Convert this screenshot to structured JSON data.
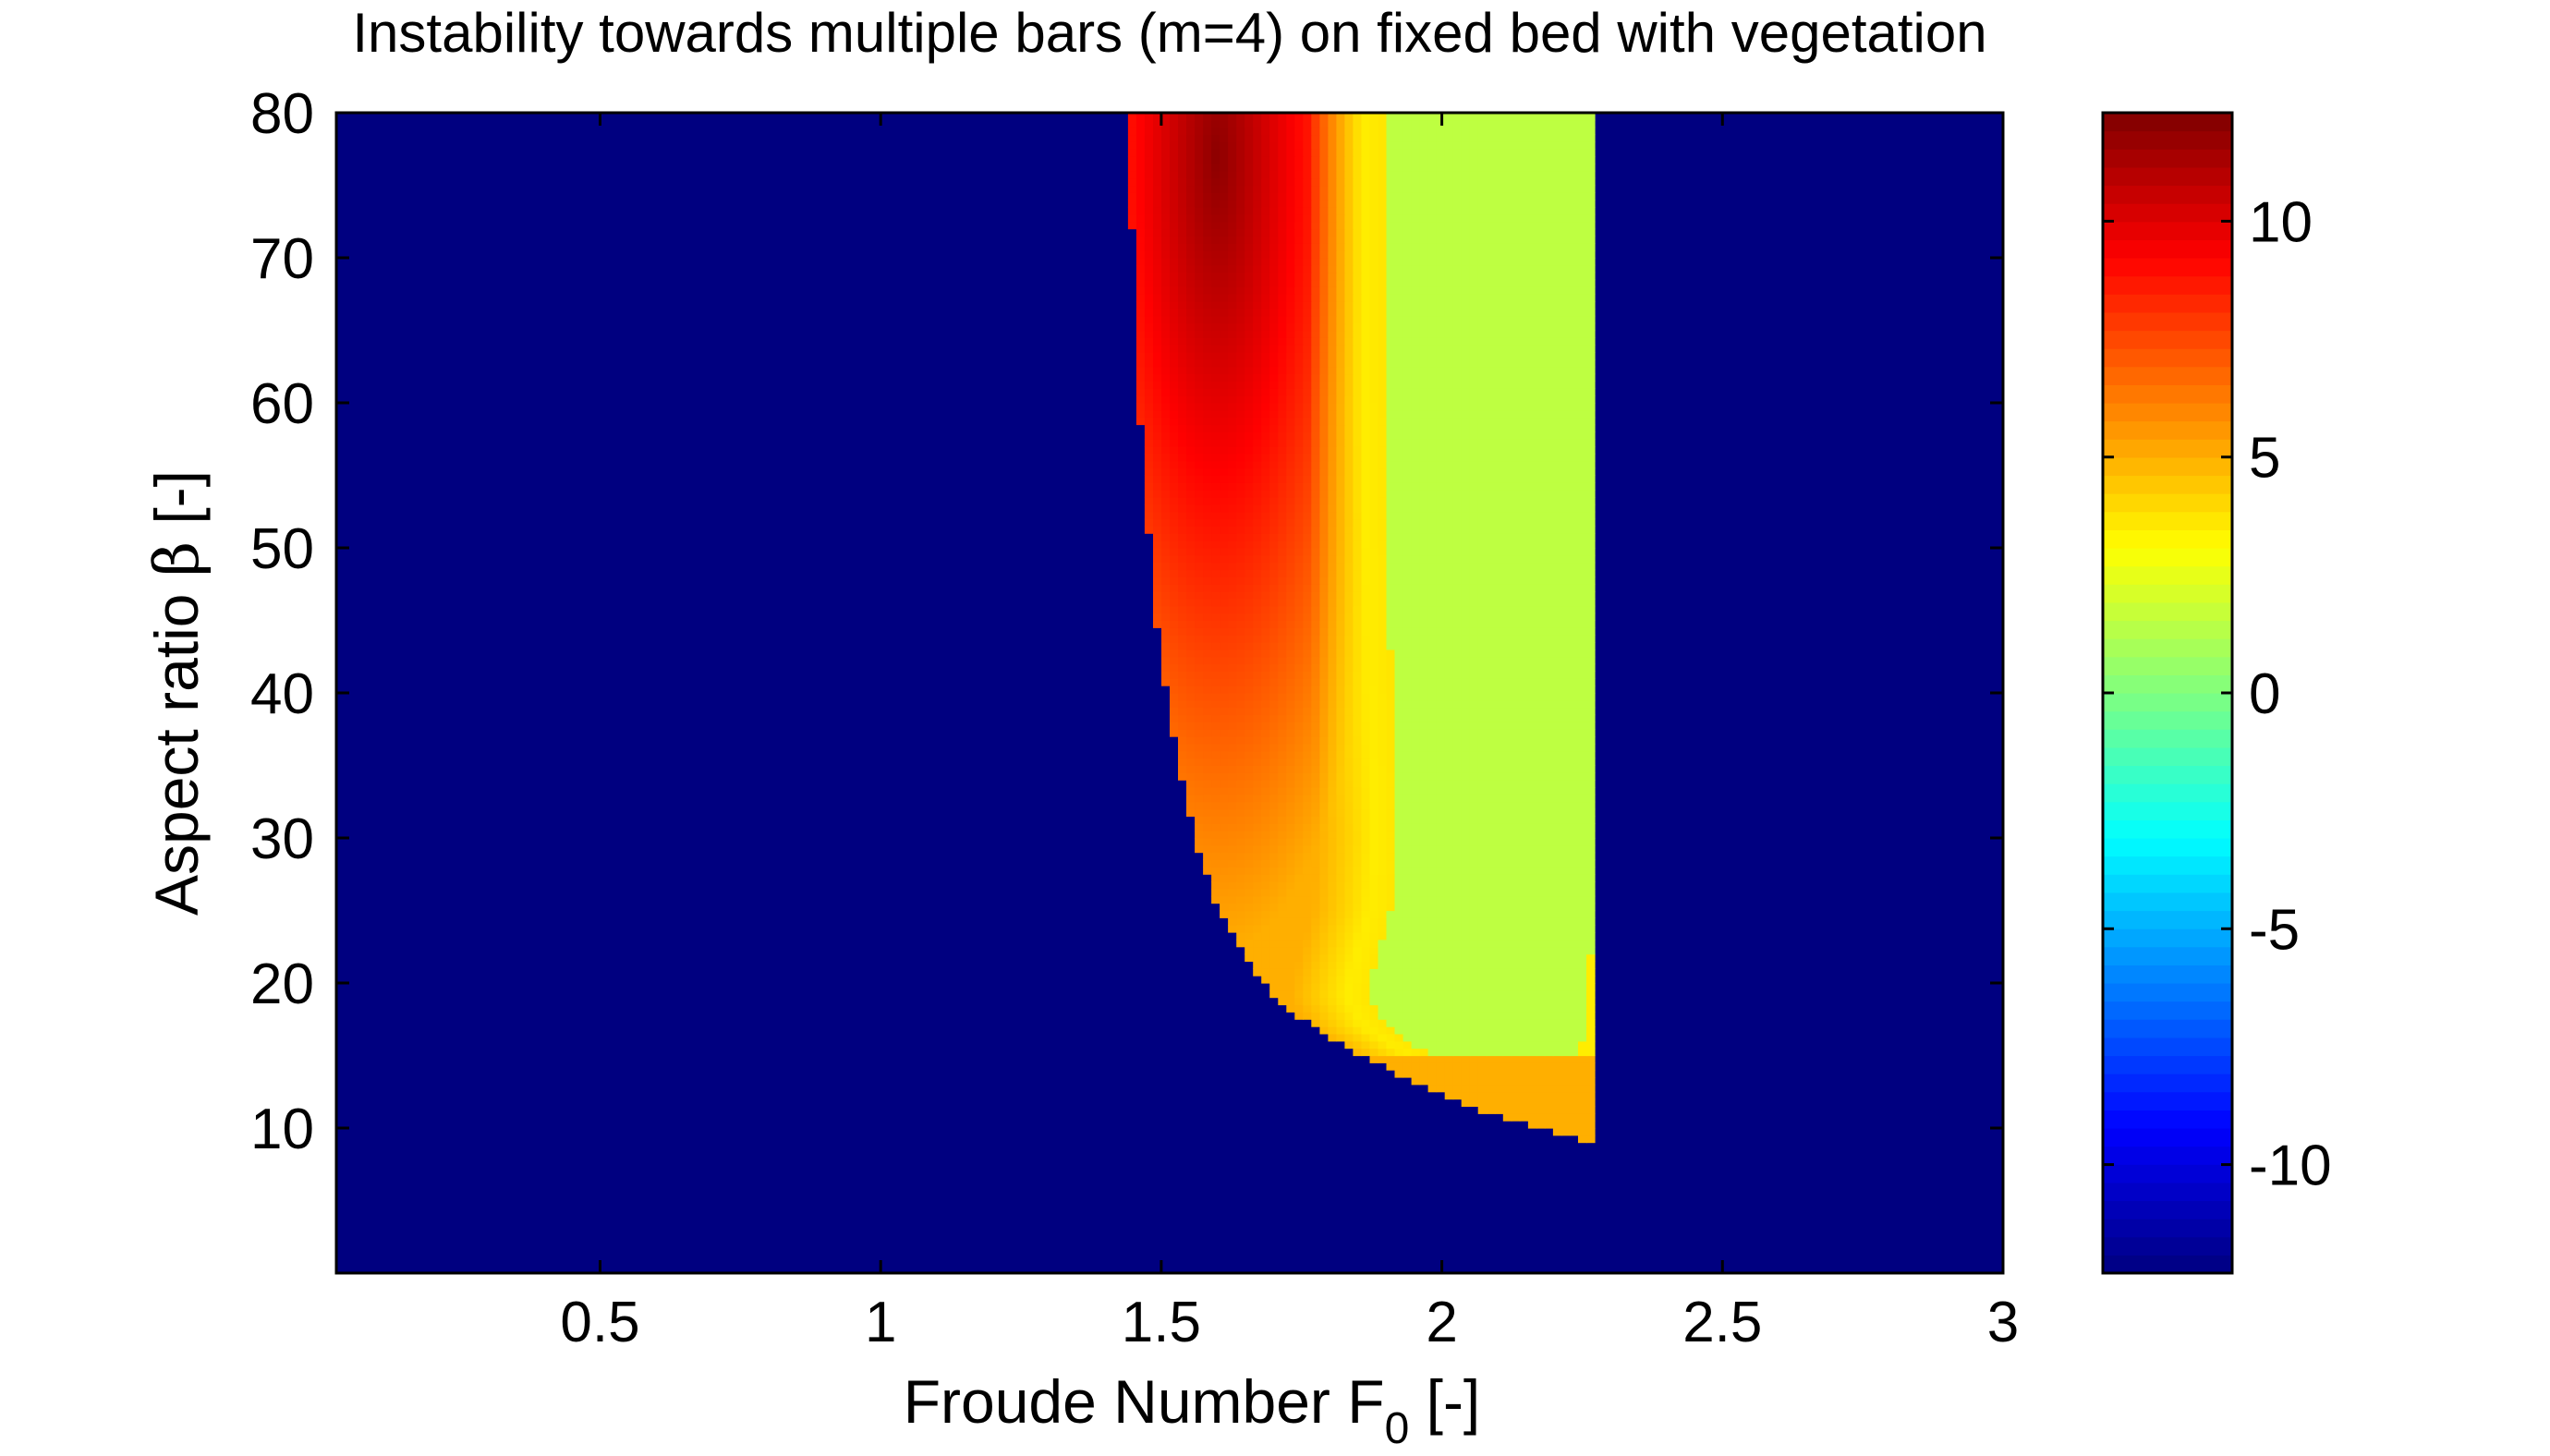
{
  "chart_data": {
    "type": "heatmap",
    "title": "Instability towards multiple bars (m=4) on fixed bed with vegetation",
    "xlabel": {
      "main": "Froude Number F",
      "sub": "0",
      "unit": " [-]"
    },
    "ylabel": {
      "main": "Aspect ratio ",
      "symbol": "β",
      "unit": " [-]"
    },
    "xlim": [
      0.03,
      3.0
    ],
    "ylim": [
      0,
      80
    ],
    "x_ticks": [
      0.5,
      1,
      1.5,
      2,
      2.5,
      3
    ],
    "x_tick_labels": [
      "0.5",
      "1",
      "1.5",
      "2",
      "2.5",
      "3"
    ],
    "y_ticks": [
      10,
      20,
      30,
      40,
      50,
      60,
      70,
      80
    ],
    "y_tick_labels": [
      "10",
      "20",
      "30",
      "40",
      "50",
      "60",
      "70",
      "80"
    ],
    "colorbar": {
      "colormap": "jet",
      "clim": [
        -12.3,
        12.3
      ],
      "ticks": [
        -10,
        -5,
        0,
        5,
        10
      ],
      "tick_labels": [
        "-10",
        "-5",
        "0",
        "5",
        "10"
      ]
    },
    "background_value": -12.3,
    "unstable_region_left_boundary": [
      {
        "beta": 80,
        "F0": 1.44
      },
      {
        "beta": 70,
        "F0": 1.45
      },
      {
        "beta": 64,
        "F0": 1.45
      },
      {
        "beta": 60,
        "F0": 1.46
      },
      {
        "beta": 55,
        "F0": 1.47
      },
      {
        "beta": 50,
        "F0": 1.48
      },
      {
        "beta": 45,
        "F0": 1.49
      },
      {
        "beta": 40,
        "F0": 1.51
      },
      {
        "beta": 35,
        "F0": 1.53
      },
      {
        "beta": 30,
        "F0": 1.56
      },
      {
        "beta": 25,
        "F0": 1.6
      },
      {
        "beta": 22,
        "F0": 1.65
      },
      {
        "beta": 19,
        "F0": 1.7
      },
      {
        "beta": 17,
        "F0": 1.77
      },
      {
        "beta": 15,
        "F0": 1.86
      },
      {
        "beta": 13,
        "F0": 1.96
      },
      {
        "beta": 11,
        "F0": 2.08
      },
      {
        "beta": 10,
        "F0": 2.18
      },
      {
        "beta": 9,
        "F0": 2.26
      }
    ],
    "green_region_left_boundary": [
      {
        "beta": 80,
        "F0": 1.9
      },
      {
        "beta": 60,
        "F0": 1.9
      },
      {
        "beta": 40,
        "F0": 1.91
      },
      {
        "beta": 30,
        "F0": 1.92
      },
      {
        "beta": 25,
        "F0": 1.91
      },
      {
        "beta": 21,
        "F0": 1.88
      },
      {
        "beta": 19,
        "F0": 1.87
      },
      {
        "beta": 17,
        "F0": 1.9
      },
      {
        "beta": 15,
        "F0": 1.98
      },
      {
        "beta": 12,
        "F0": 2.15
      },
      {
        "beta": 13,
        "F0": 2.22
      },
      {
        "beta": 16,
        "F0": 2.25
      },
      {
        "beta": 19,
        "F0": 2.26
      },
      {
        "beta": 22,
        "F0": 2.26
      }
    ],
    "stability_cutoff_F0": 2.27,
    "region_values": {
      "peak_unstable": 12.0,
      "peak_location": {
        "F0": 1.6,
        "beta": 77
      },
      "near_boundary": 7.0,
      "low_beta_edge": 5.0,
      "cyan_band": 3.5,
      "green_region": 1.5
    }
  }
}
